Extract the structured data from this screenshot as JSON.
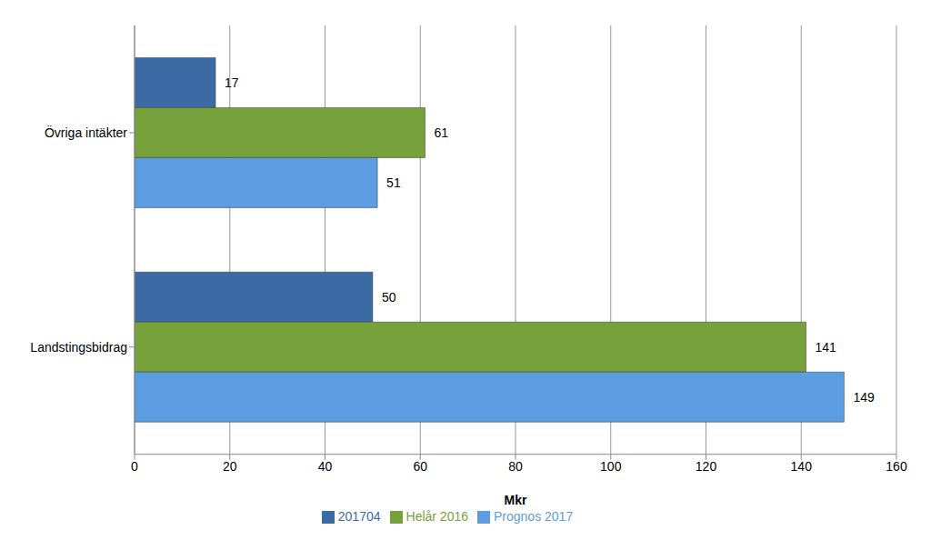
{
  "chart_data": {
    "type": "bar",
    "orientation": "horizontal",
    "categories": [
      "Övriga intäkter",
      "Landstingsbidrag"
    ],
    "series": [
      {
        "name": "201704",
        "color": "#3c6aa5",
        "values": [
          17,
          50
        ]
      },
      {
        "name": "Helår 2016",
        "color": "#77a13b",
        "values": [
          61,
          141
        ]
      },
      {
        "name": "Prognos 2017",
        "color": "#5b9de0",
        "values": [
          51,
          149
        ]
      }
    ],
    "x_label": "Mkr",
    "xlim": [
      0,
      160
    ],
    "xticks": [
      0,
      20,
      40,
      60,
      80,
      100,
      120,
      140,
      160
    ],
    "grid": true,
    "legend": "bottom",
    "data_labels": true
  }
}
